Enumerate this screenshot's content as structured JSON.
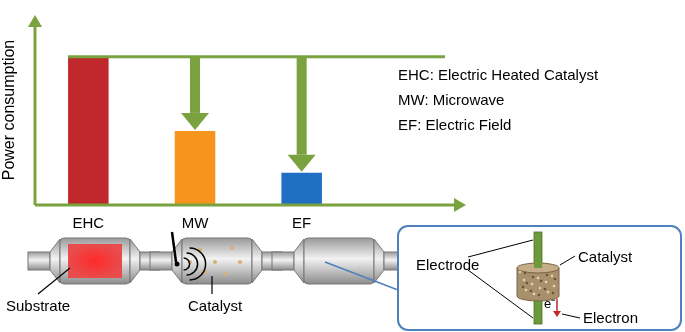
{
  "chart_data": {
    "type": "bar",
    "y_label": "Power consumption",
    "categories": [
      "EHC",
      "MW",
      "EF"
    ],
    "values": [
      78,
      39,
      17
    ],
    "colors": [
      "#c0282d",
      "#f7941d",
      "#1f6fc5"
    ],
    "ylim": [
      0,
      100
    ],
    "tick_labels": "x",
    "grid": false,
    "annotations": [
      "EHC: Electric Heated Catalyst",
      "MW: Microwave",
      "EF: Electric Field"
    ]
  },
  "diagram": {
    "labels": {
      "substrate": "Substrate",
      "catalyst": "Catalyst"
    },
    "inset": {
      "catalyst": "Catalyst",
      "electrode": "Electrode",
      "electron_symbol": "e⁻",
      "electron": "Electron"
    }
  }
}
